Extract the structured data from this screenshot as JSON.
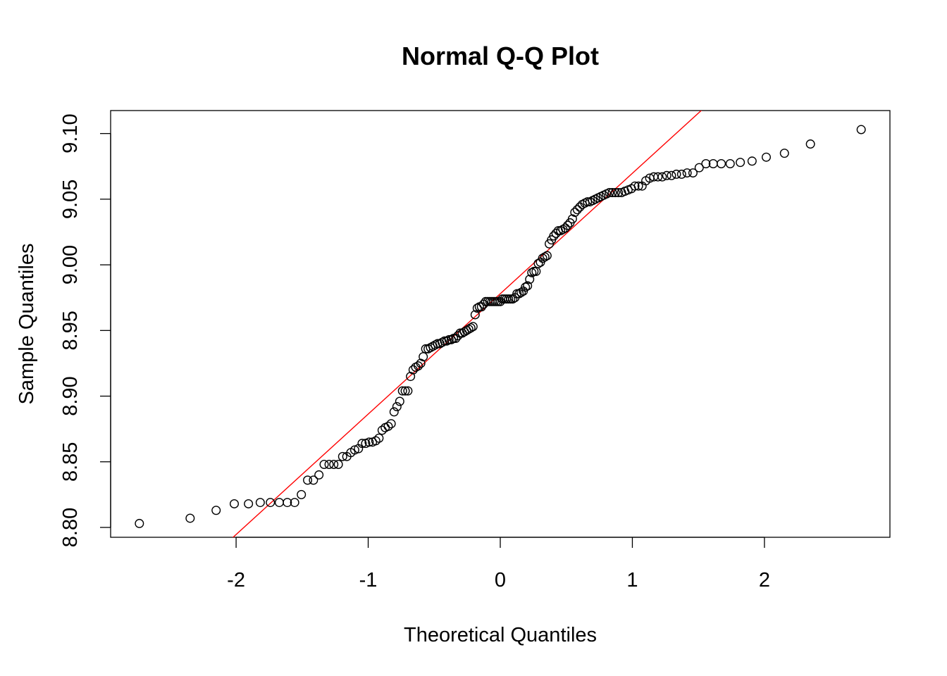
{
  "chart_data": {
    "type": "scatter",
    "title": "Normal Q-Q Plot",
    "xlabel": "Theoretical Quantiles",
    "ylabel": "Sample Quantiles",
    "xlim": [
      -2.95,
      2.95
    ],
    "ylim": [
      8.7925,
      9.1175
    ],
    "x_ticks": [
      -2,
      -1,
      0,
      1,
      2
    ],
    "x_tick_labels": [
      "-2",
      "-1",
      "0",
      "1",
      "2"
    ],
    "y_ticks": [
      8.8,
      8.85,
      8.9,
      8.95,
      9.0,
      9.05,
      9.1
    ],
    "y_tick_labels": [
      "8.80",
      "8.85",
      "8.90",
      "8.95",
      "9.00",
      "9.05",
      "9.10"
    ],
    "grid": false,
    "legend": "none",
    "point_color": "#000000",
    "line_color": "#ff0000",
    "reference_line": {
      "slope": 0.0917,
      "intercept": 8.978
    },
    "sample_quantiles": [
      8.803,
      8.807,
      8.813,
      8.818,
      8.818,
      8.819,
      8.819,
      8.819,
      8.819,
      8.819,
      8.825,
      8.836,
      8.836,
      8.84,
      8.848,
      8.848,
      8.848,
      8.848,
      8.854,
      8.854,
      8.857,
      8.859,
      8.86,
      8.864,
      8.864,
      8.865,
      8.865,
      8.866,
      8.868,
      8.874,
      8.876,
      8.877,
      8.879,
      8.888,
      8.892,
      8.896,
      8.904,
      8.904,
      8.904,
      8.915,
      8.92,
      8.922,
      8.923,
      8.925,
      8.93,
      8.936,
      8.936,
      8.937,
      8.938,
      8.939,
      8.94,
      8.94,
      8.941,
      8.942,
      8.942,
      8.943,
      8.943,
      8.944,
      8.944,
      8.946,
      8.948,
      8.948,
      8.949,
      8.95,
      8.951,
      8.952,
      8.953,
      8.962,
      8.967,
      8.968,
      8.968,
      8.97,
      8.972,
      8.972,
      8.972,
      8.972,
      8.972,
      8.972,
      8.972,
      8.972,
      8.974,
      8.974,
      8.974,
      8.974,
      8.974,
      8.974,
      8.975,
      8.978,
      8.978,
      8.979,
      8.98,
      8.983,
      8.984,
      8.989,
      8.994,
      8.995,
      8.995,
      9.001,
      9.002,
      9.005,
      9.006,
      9.007,
      9.016,
      9.019,
      9.022,
      9.024,
      9.026,
      9.026,
      9.027,
      9.028,
      9.03,
      9.032,
      9.035,
      9.04,
      9.042,
      9.044,
      9.046,
      9.047,
      9.048,
      9.048,
      9.049,
      9.05,
      9.051,
      9.052,
      9.053,
      9.054,
      9.055,
      9.055,
      9.055,
      9.055,
      9.055,
      9.056,
      9.057,
      9.058,
      9.06,
      9.06,
      9.06,
      9.064,
      9.066,
      9.067,
      9.067,
      9.067,
      9.068,
      9.068,
      9.069,
      9.069,
      9.07,
      9.07,
      9.074,
      9.077,
      9.077,
      9.077,
      9.077,
      9.078,
      9.079,
      9.082,
      9.085,
      9.092,
      9.103
    ]
  }
}
